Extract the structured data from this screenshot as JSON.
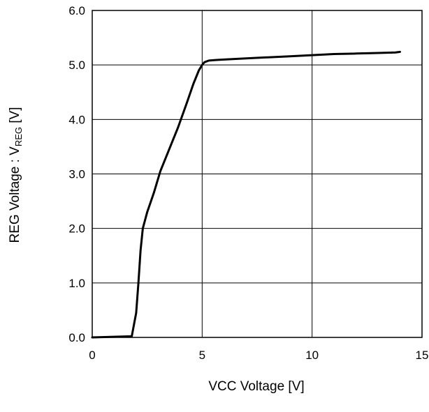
{
  "chart_data": {
    "type": "line",
    "title": "",
    "xlabel": "VCC Voltage [V]",
    "ylabel": {
      "main": "REG Voltage : V",
      "subscript": "REG",
      "unit": " [V]"
    },
    "xlim": [
      0,
      15
    ],
    "ylim": [
      0,
      6
    ],
    "xticks": [
      0,
      5,
      10,
      15
    ],
    "xtick_labels": [
      "0",
      "5",
      "10",
      "15"
    ],
    "yticks": [
      0,
      1,
      2,
      3,
      4,
      5,
      6
    ],
    "ytick_labels": [
      "0.0",
      "1.0",
      "2.0",
      "3.0",
      "4.0",
      "5.0",
      "6.0"
    ],
    "grid": true,
    "series": [
      {
        "color": "#000000",
        "x": [
          0,
          1.8,
          2.0,
          2.1,
          2.2,
          2.3,
          2.5,
          2.8,
          3.1,
          3.5,
          3.9,
          4.3,
          4.6,
          4.85,
          5.0,
          5.1,
          5.3,
          5.6,
          6.0,
          7.0,
          8.0,
          9.0,
          10.0,
          11.0,
          12.0,
          13.0,
          13.8,
          14.0
        ],
        "y": [
          0.0,
          0.02,
          0.45,
          1.0,
          1.6,
          2.0,
          2.3,
          2.65,
          3.05,
          3.45,
          3.85,
          4.3,
          4.65,
          4.9,
          5.0,
          5.05,
          5.08,
          5.09,
          5.1,
          5.12,
          5.14,
          5.16,
          5.18,
          5.2,
          5.21,
          5.22,
          5.23,
          5.24
        ]
      }
    ]
  }
}
